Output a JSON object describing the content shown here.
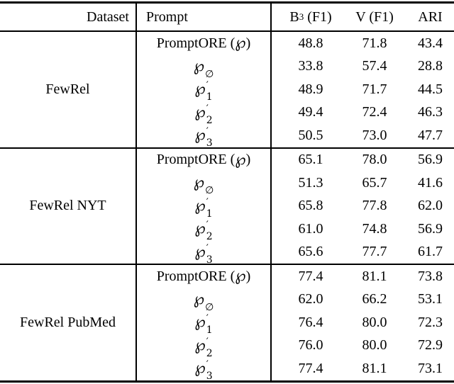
{
  "table": {
    "header": {
      "dataset": "Dataset",
      "prompt": "Prompt",
      "b3_base": "B",
      "b3_sup": "3",
      "b3_rest": " (F1)",
      "v": "V (F1)",
      "ari": "ARI"
    },
    "groups": [
      {
        "dataset": "FewRel",
        "rows": [
          {
            "prompt": {
              "pre": "PromptORE (",
              "sym": "℘",
              "sup": "",
              "sub": "",
              "post": ")"
            },
            "b3": "48.8",
            "v": "71.8",
            "ari": "43.4"
          },
          {
            "prompt": {
              "pre": "",
              "sym": "℘",
              "sup": "",
              "sub": "∅",
              "post": ""
            },
            "b3": "33.8",
            "v": "57.4",
            "ari": "28.8"
          },
          {
            "prompt": {
              "pre": "",
              "sym": "℘",
              "sup": "′",
              "sub": "1",
              "post": ""
            },
            "b3": "48.9",
            "v": "71.7",
            "ari": "44.5"
          },
          {
            "prompt": {
              "pre": "",
              "sym": "℘",
              "sup": "′",
              "sub": "2",
              "post": ""
            },
            "b3": "49.4",
            "v": "72.4",
            "ari": "46.3"
          },
          {
            "prompt": {
              "pre": "",
              "sym": "℘",
              "sup": "′",
              "sub": "3",
              "post": ""
            },
            "b3": "50.5",
            "v": "73.0",
            "ari": "47.7"
          }
        ]
      },
      {
        "dataset": "FewRel NYT",
        "rows": [
          {
            "prompt": {
              "pre": "PromptORE (",
              "sym": "℘",
              "sup": "",
              "sub": "",
              "post": ")"
            },
            "b3": "65.1",
            "v": "78.0",
            "ari": "56.9"
          },
          {
            "prompt": {
              "pre": "",
              "sym": "℘",
              "sup": "",
              "sub": "∅",
              "post": ""
            },
            "b3": "51.3",
            "v": "65.7",
            "ari": "41.6"
          },
          {
            "prompt": {
              "pre": "",
              "sym": "℘",
              "sup": "′",
              "sub": "1",
              "post": ""
            },
            "b3": "65.8",
            "v": "77.8",
            "ari": "62.0"
          },
          {
            "prompt": {
              "pre": "",
              "sym": "℘",
              "sup": "′",
              "sub": "2",
              "post": ""
            },
            "b3": "61.0",
            "v": "74.8",
            "ari": "56.9"
          },
          {
            "prompt": {
              "pre": "",
              "sym": "℘",
              "sup": "′",
              "sub": "3",
              "post": ""
            },
            "b3": "65.6",
            "v": "77.7",
            "ari": "61.7"
          }
        ]
      },
      {
        "dataset": "FewRel PubMed",
        "rows": [
          {
            "prompt": {
              "pre": "PromptORE (",
              "sym": "℘",
              "sup": "",
              "sub": "",
              "post": ")"
            },
            "b3": "77.4",
            "v": "81.1",
            "ari": "73.8"
          },
          {
            "prompt": {
              "pre": "",
              "sym": "℘",
              "sup": "",
              "sub": "∅",
              "post": ""
            },
            "b3": "62.0",
            "v": "66.2",
            "ari": "53.1"
          },
          {
            "prompt": {
              "pre": "",
              "sym": "℘",
              "sup": "′",
              "sub": "1",
              "post": ""
            },
            "b3": "76.4",
            "v": "80.0",
            "ari": "72.3"
          },
          {
            "prompt": {
              "pre": "",
              "sym": "℘",
              "sup": "′",
              "sub": "2",
              "post": ""
            },
            "b3": "76.0",
            "v": "80.0",
            "ari": "72.9"
          },
          {
            "prompt": {
              "pre": "",
              "sym": "℘",
              "sup": "′",
              "sub": "3",
              "post": ""
            },
            "b3": "77.4",
            "v": "81.1",
            "ari": "73.1"
          }
        ]
      }
    ]
  }
}
